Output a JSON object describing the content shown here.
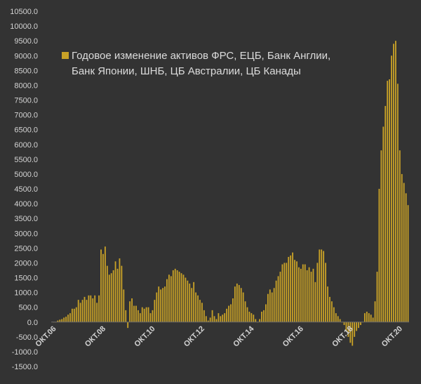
{
  "colors": {
    "background": "#333333",
    "bar": "#c9a227",
    "text": "#d4d4d4"
  },
  "chart_data": {
    "type": "bar",
    "title": "",
    "xlabel": "",
    "ylabel": "",
    "ylim": [
      -1500,
      10500
    ],
    "yticks": [
      "10500.0",
      "10000.0",
      "9500.0",
      "9000.0",
      "8500.0",
      "8000.0",
      "7500.0",
      "7000.0",
      "6500.0",
      "6000.0",
      "5500.0",
      "5000.0",
      "4500.0",
      "4000.0",
      "3500.0",
      "3000.0",
      "2500.0",
      "2000.0",
      "1500.0",
      "1000.0",
      "500.0",
      "0.0",
      "-500.0",
      "-1000.0",
      "-1500.0"
    ],
    "xticks": [
      {
        "label": "ОКТ.06",
        "index": 0
      },
      {
        "label": "ОКТ.08",
        "index": 24
      },
      {
        "label": "ОКТ.10",
        "index": 48
      },
      {
        "label": "ОКТ.12",
        "index": 72
      },
      {
        "label": "ОКТ.14",
        "index": 96
      },
      {
        "label": "ОКТ.16",
        "index": 120
      },
      {
        "label": "ОКТ.18",
        "index": 144
      },
      {
        "label": "ОКТ.20",
        "index": 168
      }
    ],
    "legend": {
      "position": "top-left"
    },
    "grid": false,
    "series": [
      {
        "name": "Годовое изменение активов ФРС, ЕЦБ, Банк Англии, Банк Японии, ШНБ, ЦБ Австралии, ЦБ Канады",
        "color": "#c9a227",
        "values": [
          0,
          0,
          50,
          80,
          100,
          150,
          180,
          250,
          300,
          450,
          450,
          500,
          750,
          650,
          750,
          850,
          750,
          900,
          900,
          800,
          900,
          650,
          900,
          2450,
          2300,
          2550,
          1900,
          1600,
          1650,
          1750,
          2050,
          1800,
          2150,
          1900,
          1100,
          400,
          -200,
          700,
          800,
          550,
          550,
          400,
          300,
          500,
          450,
          500,
          500,
          300,
          400,
          750,
          1000,
          1200,
          1100,
          1150,
          1200,
          1450,
          1600,
          1550,
          1750,
          1800,
          1750,
          1700,
          1650,
          1600,
          1500,
          1400,
          1300,
          1150,
          1350,
          1000,
          900,
          750,
          650,
          400,
          200,
          50,
          150,
          400,
          200,
          100,
          300,
          200,
          250,
          300,
          450,
          550,
          600,
          800,
          1200,
          1300,
          1250,
          1150,
          1000,
          700,
          500,
          350,
          300,
          250,
          100,
          0,
          100,
          350,
          400,
          600,
          950,
          1100,
          1000,
          1150,
          1400,
          1550,
          1700,
          1950,
          2000,
          2000,
          2200,
          2250,
          2350,
          2100,
          2050,
          1850,
          1800,
          1950,
          1950,
          1750,
          1850,
          1700,
          1800,
          1350,
          2000,
          2450,
          2450,
          2400,
          2000,
          1200,
          850,
          700,
          500,
          300,
          200,
          100,
          0,
          -100,
          -300,
          -500,
          -700,
          -800,
          -500,
          -300,
          -200,
          -100,
          0,
          300,
          350,
          300,
          250,
          150,
          700,
          1700,
          4500,
          5800,
          6600,
          7300,
          8150,
          8200,
          9000,
          9400,
          9500,
          8050,
          5800,
          5000,
          4700,
          4350,
          3950
        ]
      }
    ]
  }
}
